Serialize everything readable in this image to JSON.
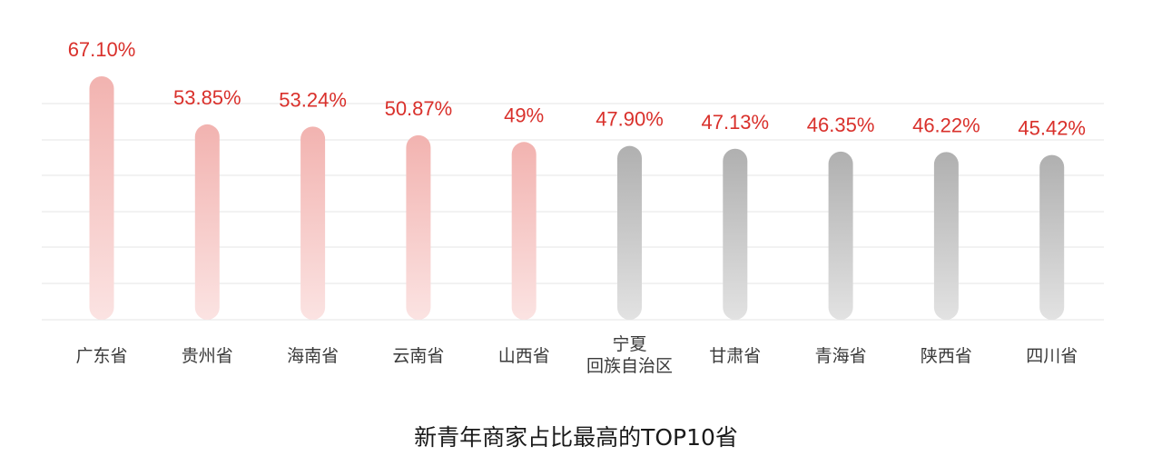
{
  "chart_data": {
    "type": "bar",
    "title": "新青年商家占比最高的TOP10省",
    "categories": [
      "广东省",
      "贵州省",
      "海南省",
      "云南省",
      "山西省",
      "宁夏\n回族自治区",
      "甘肃省",
      "青海省",
      "陕西省",
      "四川省"
    ],
    "values": [
      67.1,
      53.85,
      53.24,
      50.87,
      49,
      47.9,
      47.13,
      46.35,
      46.22,
      45.42
    ],
    "value_labels": [
      "67.10%",
      "53.85%",
      "53.24%",
      "50.87%",
      "49%",
      "47.90%",
      "47.13%",
      "46.35%",
      "46.22%",
      "45.42%"
    ],
    "ylim": [
      0,
      70
    ],
    "grid": true,
    "legend": "none",
    "highlight_count": 5,
    "colors": {
      "highlight_top": "#f2b3b0",
      "highlight_bottom": "#fbe3e2",
      "normal_top": "#b0b0b0",
      "normal_bottom": "#e2e2e2",
      "value_label": "#d9302b",
      "category_label": "#3a3a3a",
      "grid": "#e6e6e6"
    }
  }
}
